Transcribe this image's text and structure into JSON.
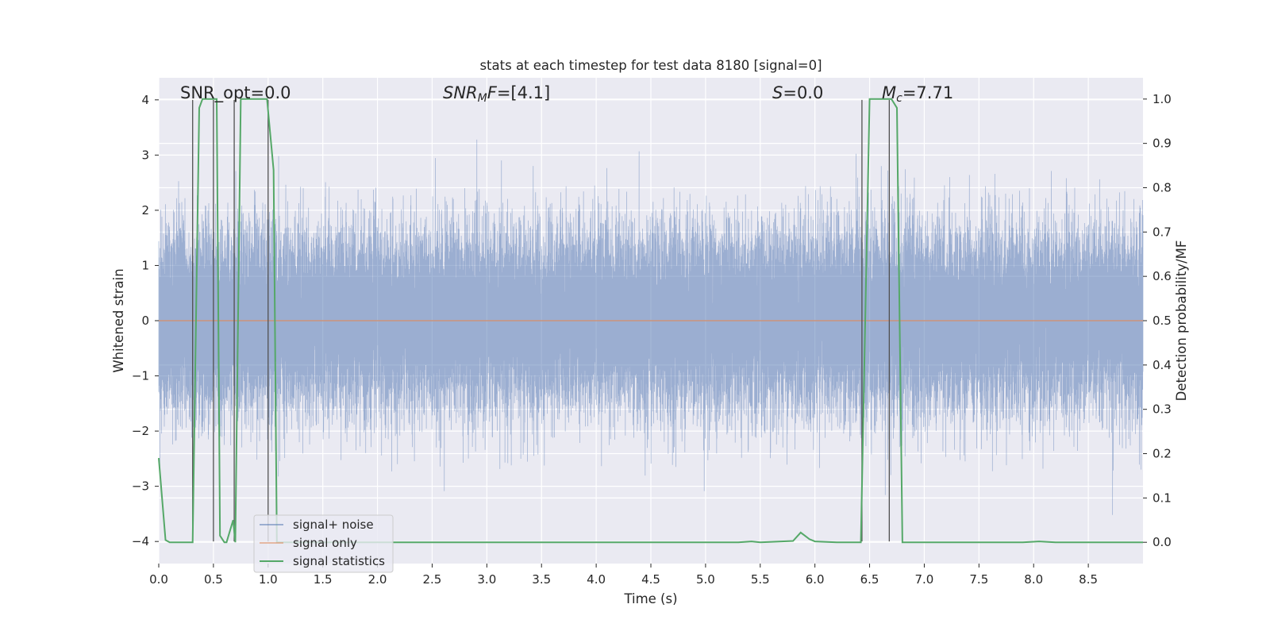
{
  "chart_data": {
    "type": "line",
    "title": "stats at each timestep for test data 8180 [signal=0]",
    "xlabel": "Time (s)",
    "ylabel": "Whitened strain",
    "ylabel_right": "Detection probability/MF",
    "xlim": [
      0.0,
      9.0
    ],
    "ylim": [
      -4.4,
      4.4
    ],
    "ylim_right": [
      -0.048,
      1.048
    ],
    "x_ticks": [
      0.0,
      0.5,
      1.0,
      1.5,
      2.0,
      2.5,
      3.0,
      3.5,
      4.0,
      4.5,
      5.0,
      5.5,
      6.0,
      6.5,
      7.0,
      7.5,
      8.0,
      8.5
    ],
    "x_tick_labels": [
      "0.0",
      "0.5",
      "1.0",
      "1.5",
      "2.0",
      "2.5",
      "3.0",
      "3.5",
      "4.0",
      "4.5",
      "5.0",
      "5.5",
      "6.0",
      "6.5",
      "7.0",
      "7.5",
      "8.0",
      "8.5"
    ],
    "y_ticks": [
      -4,
      -3,
      -2,
      -1,
      0,
      1,
      2,
      3,
      4
    ],
    "y_tick_labels": [
      "−4",
      "−3",
      "−2",
      "−1",
      "0",
      "1",
      "2",
      "3",
      "4"
    ],
    "y_ticks_right": [
      0.0,
      0.1,
      0.2,
      0.3,
      0.4,
      0.5,
      0.6,
      0.7,
      0.8,
      0.9,
      1.0
    ],
    "y_tick_labels_right": [
      "0.0",
      "0.1",
      "0.2",
      "0.3",
      "0.4",
      "0.5",
      "0.6",
      "0.7",
      "0.8",
      "0.9",
      "1.0"
    ],
    "grid": true,
    "legend_position": "lower-left",
    "annotations": {
      "snr_opt": "SNR_opt=0.0",
      "snr_mf_a": "SNR",
      "snr_mf_b": "M",
      "snr_mf_c": "F",
      "snr_mf_d": "=[4.1]",
      "s_a": "S",
      "s_b": "=0.0",
      "mc_a": "M",
      "mc_b": "c",
      "mc_c": "=7.71"
    },
    "series": [
      {
        "name": "signal+ noise",
        "color": "#4c72b0",
        "description_kind": "dense noise trace",
        "sample_rate_hz": 4096,
        "duration_s": 9.0,
        "approx_std": 0.8,
        "approx_peak_min": -4.0,
        "approx_peak_max": 3.7
      },
      {
        "name": "signal only",
        "color": "#dd8452",
        "x": [
          0.0,
          9.0
        ],
        "y": [
          0.0,
          0.0
        ]
      },
      {
        "name": "signal statistics",
        "color": "#55a868",
        "axis": "right",
        "x": [
          0.0,
          0.062,
          0.1,
          0.2,
          0.3,
          0.31,
          0.37,
          0.4,
          0.45,
          0.47,
          0.5,
          0.53,
          0.56,
          0.6,
          0.62,
          0.68,
          0.7,
          0.75,
          0.78,
          0.8,
          0.85,
          0.9,
          0.95,
          0.99,
          1.02,
          1.05,
          1.08,
          1.11,
          1.14,
          1.2,
          1.5,
          2.0,
          2.5,
          3.0,
          3.5,
          4.0,
          4.5,
          5.0,
          5.3,
          5.42,
          5.5,
          5.8,
          5.87,
          5.95,
          6.0,
          6.2,
          6.25,
          6.3,
          6.42,
          6.5,
          6.7,
          6.75,
          6.8,
          7.0,
          7.5,
          7.9,
          8.05,
          8.2,
          8.5,
          9.0
        ],
        "y": [
          0.19,
          0.005,
          0.0,
          0.0,
          0.0,
          0.0,
          0.98,
          1.0,
          1.0,
          1.0,
          1.0,
          1.0,
          0.015,
          0.0,
          0.0,
          0.05,
          0.0,
          1.0,
          1.0,
          1.0,
          1.0,
          1.0,
          1.0,
          1.0,
          0.92,
          0.84,
          0.0,
          0.0,
          0.0,
          0.0,
          0.0,
          0.0,
          0.0,
          0.0,
          0.0,
          0.0,
          0.0,
          0.0,
          0.0,
          0.002,
          0.0,
          0.003,
          0.022,
          0.007,
          0.002,
          0.0,
          0.0,
          0.0,
          0.0,
          1.0,
          1.0,
          0.98,
          0.0,
          0.0,
          0.0,
          0.0,
          0.002,
          0.0,
          0.0,
          0.0
        ]
      }
    ],
    "vertical_markers_x": [
      0.31,
      0.5,
      0.69,
      1.0,
      6.43,
      6.68
    ]
  }
}
